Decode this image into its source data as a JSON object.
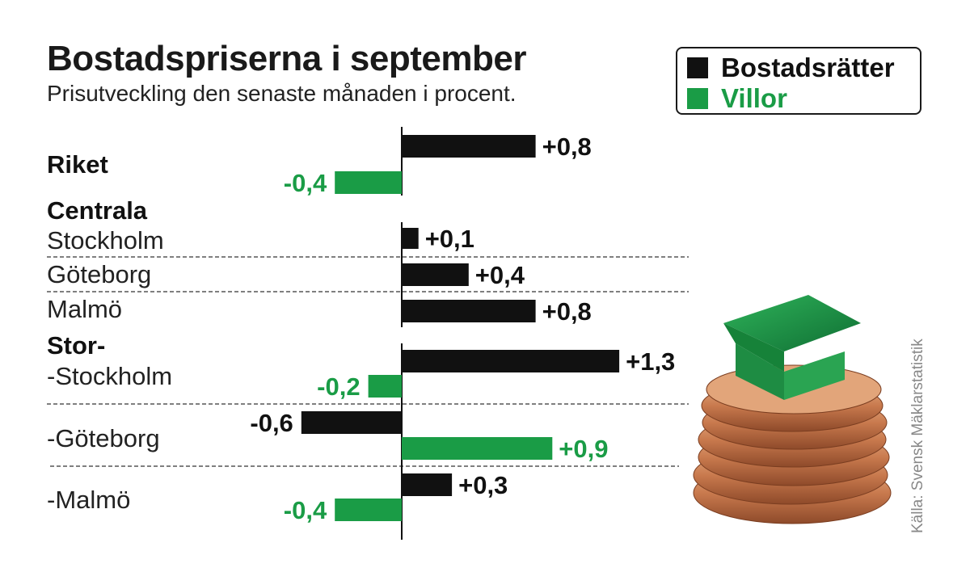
{
  "title": "Bostadspriserna i september",
  "subtitle": "Prisutveckling den senaste månaden i procent.",
  "source": "Källa: Svensk Mäklarstatistik",
  "colors": {
    "bostadsratter": "#111111",
    "villor": "#1a9c46",
    "divider": "#333333"
  },
  "legend": [
    {
      "label": "Bostadsrätter",
      "color": "#111111"
    },
    {
      "label": "Villor",
      "color": "#1a9c46"
    }
  ],
  "group_labels": {
    "riket": "Riket",
    "centrala": "Centrala",
    "stor": "Stor-"
  },
  "photo_description_icon": "house-on-coins-icon",
  "chart_data": {
    "type": "bar",
    "orientation": "horizontal",
    "unit": "procent",
    "xlim": [
      -0.6,
      1.3
    ],
    "categories": [
      "Riket",
      "Stockholm",
      "Göteborg",
      "Malmö",
      "-Stockholm",
      "-Göteborg",
      "-Malmö"
    ],
    "series": [
      {
        "name": "Bostadsrätter",
        "values": [
          0.8,
          0.1,
          0.4,
          0.8,
          1.3,
          -0.6,
          0.3
        ]
      },
      {
        "name": "Villor",
        "values": [
          -0.4,
          null,
          null,
          null,
          -0.2,
          0.9,
          -0.4
        ]
      }
    ],
    "value_labels": {
      "Bostadsrätter": [
        "+0,8",
        "+0,1",
        "+0,4",
        "+0,8",
        "+1,3",
        "-0,6",
        "+0,3"
      ],
      "Villor": [
        "-0,4",
        null,
        null,
        null,
        "-0,2",
        "+0,9",
        "-0,4"
      ]
    }
  }
}
